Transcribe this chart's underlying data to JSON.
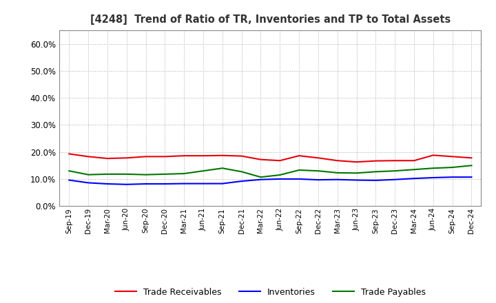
{
  "title": "[4248]  Trend of Ratio of TR, Inventories and TP to Total Assets",
  "x_labels": [
    "Sep-19",
    "Dec-19",
    "Mar-20",
    "Jun-20",
    "Sep-20",
    "Dec-20",
    "Mar-21",
    "Jun-21",
    "Sep-21",
    "Dec-21",
    "Mar-22",
    "Jun-22",
    "Sep-22",
    "Dec-22",
    "Mar-23",
    "Jun-23",
    "Sep-23",
    "Dec-23",
    "Mar-24",
    "Jun-24",
    "Sep-24",
    "Dec-24"
  ],
  "trade_receivables": [
    0.193,
    0.183,
    0.176,
    0.178,
    0.183,
    0.183,
    0.186,
    0.186,
    0.187,
    0.185,
    0.172,
    0.168,
    0.186,
    0.178,
    0.168,
    0.163,
    0.167,
    0.168,
    0.168,
    0.188,
    0.183,
    0.178
  ],
  "inventories": [
    0.096,
    0.086,
    0.082,
    0.08,
    0.082,
    0.082,
    0.083,
    0.083,
    0.083,
    0.092,
    0.098,
    0.1,
    0.1,
    0.097,
    0.098,
    0.096,
    0.095,
    0.098,
    0.102,
    0.105,
    0.107,
    0.107
  ],
  "trade_payables": [
    0.13,
    0.116,
    0.118,
    0.118,
    0.116,
    0.118,
    0.12,
    0.13,
    0.14,
    0.127,
    0.107,
    0.115,
    0.133,
    0.13,
    0.123,
    0.122,
    0.127,
    0.13,
    0.135,
    0.14,
    0.143,
    0.15
  ],
  "ylim": [
    0.0,
    0.65
  ],
  "yticks": [
    0.0,
    0.1,
    0.2,
    0.3,
    0.4,
    0.5,
    0.6
  ],
  "color_tr": "#e8000a",
  "color_inv": "#0000ff",
  "color_tp": "#007700",
  "background_color": "#ffffff",
  "grid_color": "#aaaaaa",
  "title_color": "#333333",
  "legend_labels": [
    "Trade Receivables",
    "Inventories",
    "Trade Payables"
  ]
}
